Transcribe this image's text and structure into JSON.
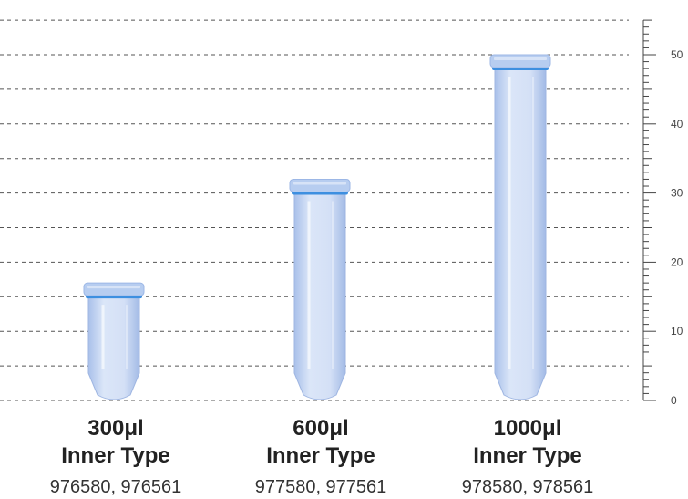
{
  "scale": {
    "unit": "mm",
    "min": 0,
    "max": 50,
    "tick_labels": [
      "0",
      "10",
      "20",
      "30",
      "40",
      "50"
    ]
  },
  "tubes": [
    {
      "volume": "300",
      "unit": "μl",
      "type": "Inner Type",
      "codes": "976580, 976561",
      "height_mm": 17
    },
    {
      "volume": "600",
      "unit": "μl",
      "type": "Inner Type",
      "codes": "977580, 977561",
      "height_mm": 32
    },
    {
      "volume": "1000",
      "unit": "μl",
      "type": "Inner Type",
      "codes": "978580, 978561",
      "height_mm": 50
    }
  ],
  "colors": {
    "tube_body": "#c9d8f2",
    "tube_edge": "#9fb6e2",
    "cap": "#b7cdf0",
    "ring": "#3d8fe0",
    "gridline": "#555555",
    "axis": "#444444",
    "text": "#222222"
  }
}
